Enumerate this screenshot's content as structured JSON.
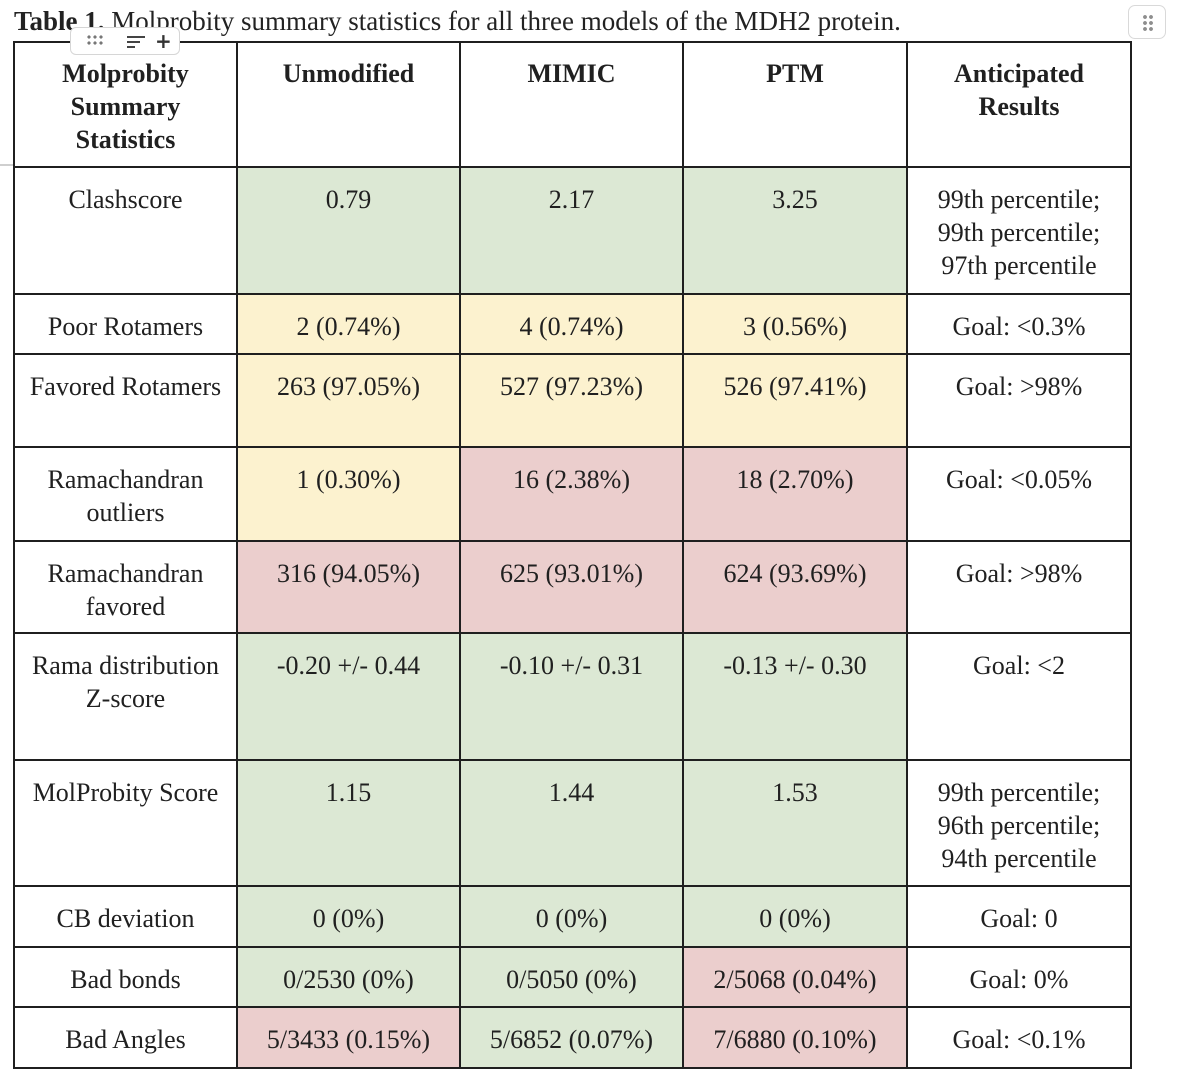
{
  "caption": {
    "label": "Table 1.",
    "text": " Molprobity summary statistics for all three models of the MDH2 protein."
  },
  "colors": {
    "green": "#dce8d4",
    "yellow": "#fcf2cf",
    "red": "#ebcecd"
  },
  "table": {
    "headers": [
      "Molprobity Summary Statistics",
      "Unmodified",
      "MIMIC",
      "PTM",
      "Anticipated Results"
    ],
    "rows": [
      {
        "stat": "Clashscore",
        "unmodified": "0.79",
        "mimic": "2.17",
        "ptm": "3.25",
        "anticipated": "99th percentile; 99th percentile; 97th percentile"
      },
      {
        "stat": "Poor Rotamers",
        "unmodified": "2 (0.74%)",
        "mimic": "4 (0.74%)",
        "ptm": "3 (0.56%)",
        "anticipated": "Goal: <0.3%"
      },
      {
        "stat": "Favored Rotamers",
        "unmodified": "263 (97.05%)",
        "mimic": "527 (97.23%)",
        "ptm": "526 (97.41%)",
        "anticipated": "Goal: >98%"
      },
      {
        "stat": "Ramachandran outliers",
        "unmodified": "1 (0.30%)",
        "mimic": "16 (2.38%)",
        "ptm": "18 (2.70%)",
        "anticipated": "Goal: <0.05%"
      },
      {
        "stat": "Ramachandran favored",
        "unmodified": "316 (94.05%)",
        "mimic": "625 (93.01%)",
        "ptm": "624 (93.69%)",
        "anticipated": "Goal: >98%"
      },
      {
        "stat": "Rama distribution Z-score",
        "unmodified": "-0.20 +/- 0.44",
        "mimic": "-0.10 +/- 0.31",
        "ptm": "-0.13 +/- 0.30",
        "anticipated": "Goal: <2"
      },
      {
        "stat": "MolProbity Score",
        "unmodified": "1.15",
        "mimic": "1.44",
        "ptm": "1.53",
        "anticipated": "99th percentile; 96th percentile; 94th percentile"
      },
      {
        "stat": "CB deviation",
        "unmodified": "0 (0%)",
        "mimic": "0 (0%)",
        "ptm": "0 (0%)",
        "anticipated": "Goal: 0"
      },
      {
        "stat": "Bad bonds",
        "unmodified": "0/2530 (0%)",
        "mimic": "0/5050 (0%)",
        "ptm": "2/5068 (0.04%)",
        "anticipated": "Goal: 0%"
      },
      {
        "stat": "Bad Angles",
        "unmodified": "5/3433 (0.15%)",
        "mimic": "5/6852 (0.07%)",
        "ptm": "7/6880 (0.10%)",
        "anticipated": "Goal: <0.1%"
      }
    ]
  }
}
